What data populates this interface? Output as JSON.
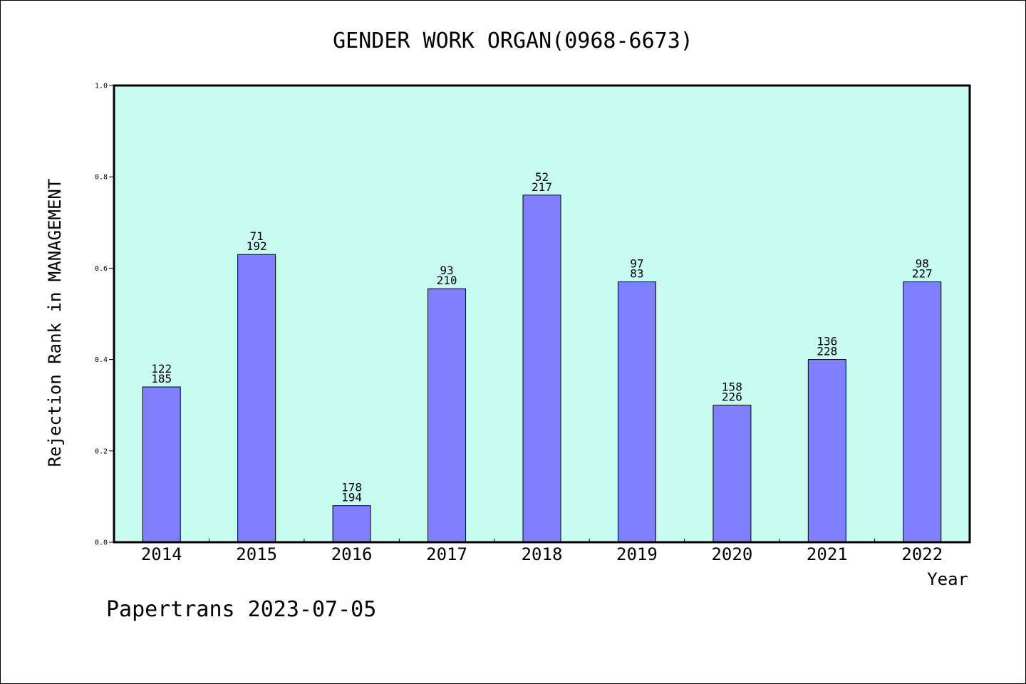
{
  "chart_data": {
    "type": "bar",
    "title": "GENDER WORK ORGAN(0968-6673)",
    "xlabel": "Year",
    "ylabel": "Rejection Rank in MANAGEMENT",
    "categories": [
      "2014",
      "2015",
      "2016",
      "2017",
      "2018",
      "2019",
      "2020",
      "2021",
      "2022"
    ],
    "values": [
      0.34,
      0.63,
      0.08,
      0.555,
      0.76,
      0.57,
      0.3,
      0.4,
      0.57
    ],
    "label_top": [
      "122",
      "71",
      "178",
      "93",
      "52",
      "97",
      "158",
      "136",
      "98"
    ],
    "label_bottom": [
      "185",
      "192",
      "194",
      "210",
      "217",
      "83",
      "226",
      "228",
      "227"
    ],
    "ylim": [
      0.0,
      1.0
    ],
    "yticks": [
      "0.0",
      "0.2",
      "0.4",
      "0.6",
      "0.8",
      "1.0"
    ],
    "grid": false,
    "legend": "none",
    "colors": {
      "plot_background": "#c8fcf0",
      "bar_fill": "#8080ff",
      "bar_edge": "#000000"
    }
  },
  "footer": {
    "text": "Papertrans 2023-07-05"
  }
}
